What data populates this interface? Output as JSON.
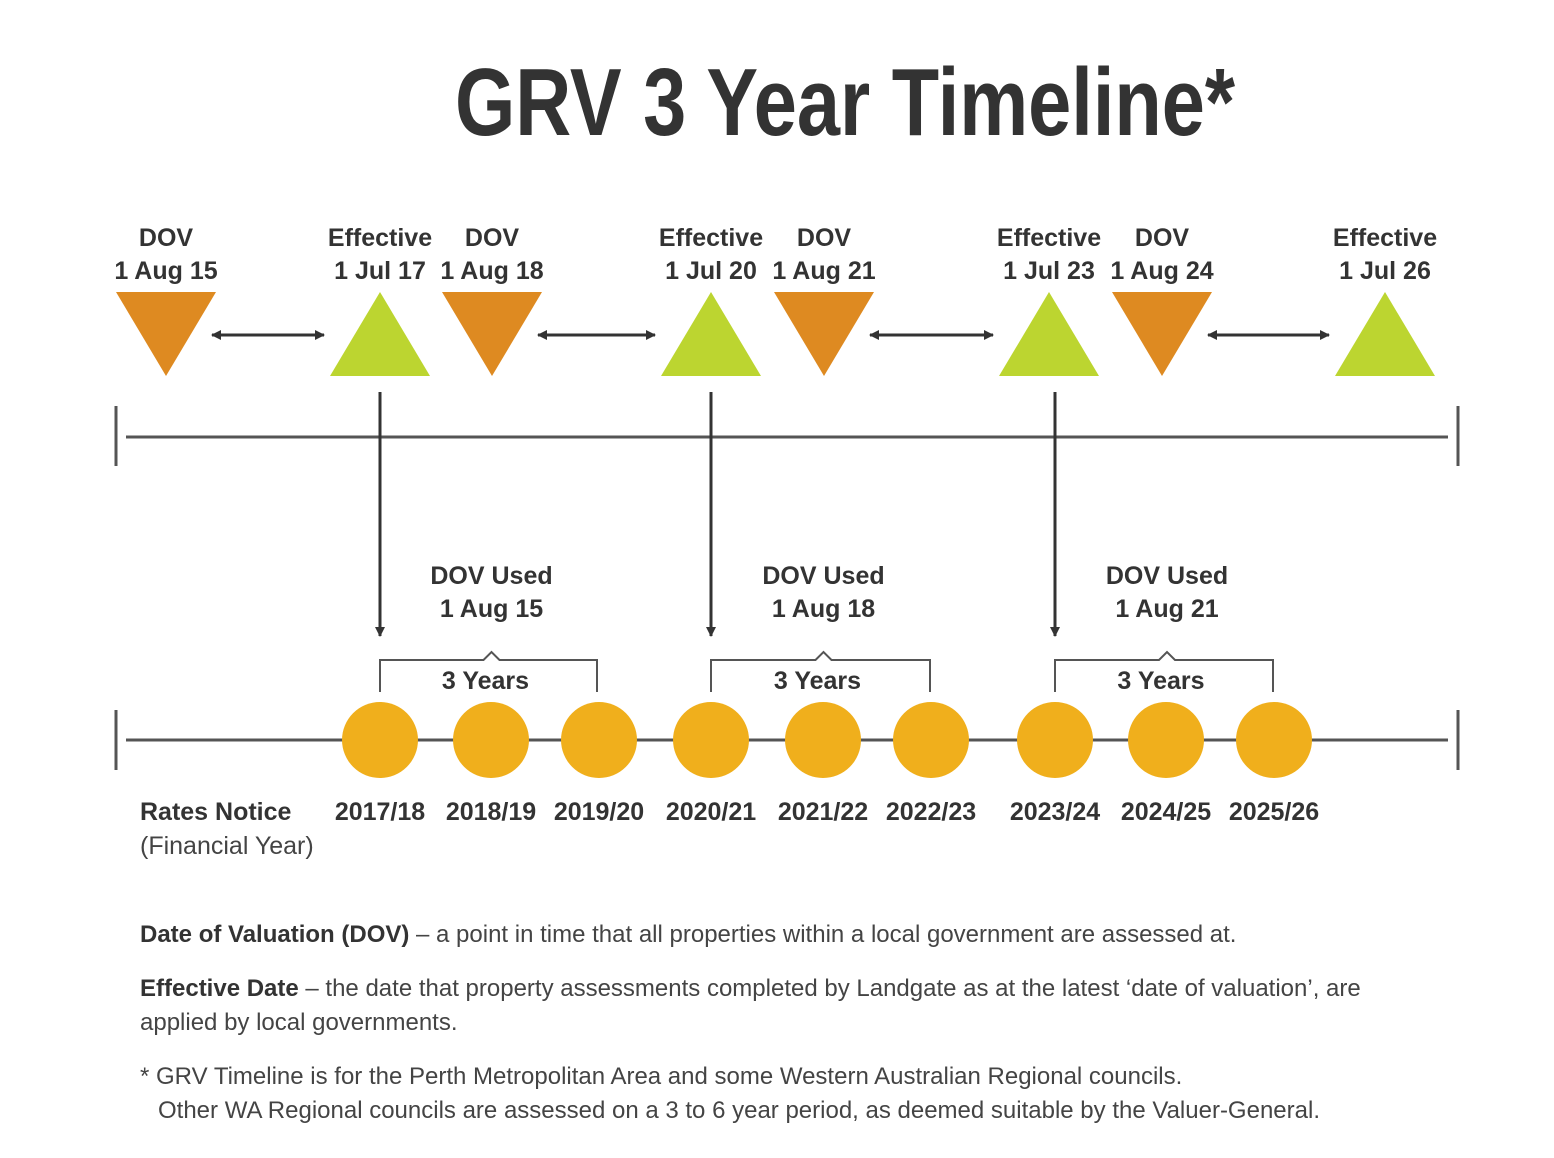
{
  "title": "GRV 3 Year Timeline*",
  "colors": {
    "dov": "#DE8A21",
    "effective": "#BCD530",
    "rates": "#F0AF1C",
    "text": "#333333",
    "line": "#555555"
  },
  "events": [
    {
      "type": "dov",
      "label": "DOV",
      "date": "1 Aug 15"
    },
    {
      "type": "effective",
      "label": "Effective",
      "date": "1 Jul 17"
    },
    {
      "type": "dov",
      "label": "DOV",
      "date": "1 Aug 18"
    },
    {
      "type": "effective",
      "label": "Effective",
      "date": "1 Jul 20"
    },
    {
      "type": "dov",
      "label": "DOV",
      "date": "1 Aug 21"
    },
    {
      "type": "effective",
      "label": "Effective",
      "date": "1 Jul 23"
    },
    {
      "type": "dov",
      "label": "DOV",
      "date": "1 Aug 24"
    },
    {
      "type": "effective",
      "label": "Effective",
      "date": "1 Jul 26"
    }
  ],
  "cycles": [
    {
      "used_label": "DOV Used",
      "used_date": "1 Aug 15",
      "span_label": "3 Years"
    },
    {
      "used_label": "DOV Used",
      "used_date": "1 Aug 18",
      "span_label": "3 Years"
    },
    {
      "used_label": "DOV Used",
      "used_date": "1 Aug 21",
      "span_label": "3 Years"
    }
  ],
  "rates_notice": {
    "label": "Rates Notice",
    "sublabel": "(Financial Year)",
    "years": [
      "2017/18",
      "2018/19",
      "2019/20",
      "2020/21",
      "2021/22",
      "2022/23",
      "2023/24",
      "2024/25",
      "2025/26"
    ]
  },
  "notes": {
    "dov_term": "Date of Valuation (DOV)",
    "dov_def": " – a point in time that all properties within a local government are assessed at.",
    "eff_term": "Effective Date",
    "eff_def": " – the date that property assessments completed by Landgate as at the latest ‘date of valuation’, are applied by local governments.",
    "footnote_1": "* GRV Timeline is for the Perth Metropolitan Area and some Western Australian Regional councils.",
    "footnote_2": "Other WA Regional councils are assessed on a 3 to 6 year period, as deemed suitable by the Valuer-General."
  }
}
